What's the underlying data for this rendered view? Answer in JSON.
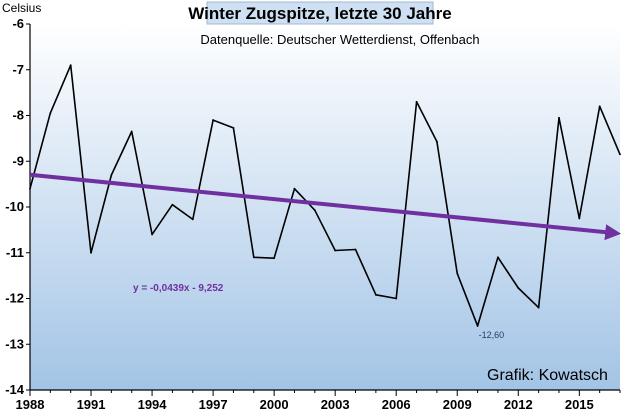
{
  "chart_data": {
    "type": "line",
    "title": "Winter Zugspitze, letzte 30 Jahre",
    "subtitle": "Datenquelle: Deutscher Wetterdienst, Offenbach",
    "ylabel": "Celsius",
    "credit": "Grafik: Kowatsch",
    "ylim": [
      -14,
      -6
    ],
    "yticks": [
      -6,
      -7,
      -8,
      -9,
      -10,
      -11,
      -12,
      -13,
      -14
    ],
    "xlim": [
      1988,
      2017
    ],
    "xticks": [
      1988,
      1991,
      1994,
      1997,
      2000,
      2003,
      2006,
      2009,
      2012,
      2015
    ],
    "x": [
      1988,
      1989,
      1990,
      1991,
      1992,
      1993,
      1994,
      1995,
      1996,
      1997,
      1998,
      1999,
      2000,
      2001,
      2002,
      2003,
      2004,
      2005,
      2006,
      2007,
      2008,
      2009,
      2010,
      2011,
      2012,
      2013,
      2014,
      2015,
      2016,
      2017
    ],
    "series": [
      {
        "values": [
          -9.6,
          -7.95,
          -6.9,
          -11.0,
          -9.3,
          -8.35,
          -10.6,
          -9.95,
          -10.27,
          -8.1,
          -8.27,
          -11.1,
          -11.12,
          -9.6,
          -10.07,
          -10.95,
          -10.93,
          -11.92,
          -12.0,
          -7.7,
          -8.57,
          -11.45,
          -12.6,
          -11.1,
          -11.77,
          -12.2,
          -8.05,
          -10.25,
          -7.8,
          -8.85
        ],
        "color": "#000000"
      }
    ],
    "trendline": {
      "equation": "y = -0,0439x - 9,252",
      "slope": -0.0439,
      "intercept": -9.252,
      "color": "#7030a0"
    },
    "annotations": [
      {
        "text": "-12,60",
        "x": 2010,
        "y": -12.6
      }
    ],
    "grid": false,
    "background": {
      "top": "#ffffff",
      "bottom": "#a3c4e6"
    }
  }
}
